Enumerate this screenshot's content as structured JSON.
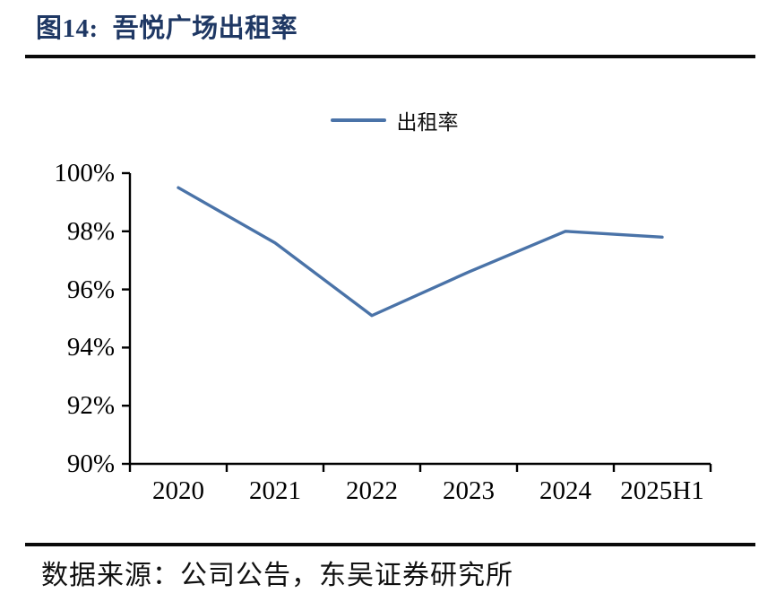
{
  "page": {
    "title_prefix": "图14:",
    "title": "吾悦广场出租率",
    "source_label": "数据来源：公司公告，东吴证券研究所"
  },
  "legend": {
    "series_label": "出租率"
  },
  "colors": {
    "title_text": "#1f3864",
    "series_line": "#4a73a8",
    "axis": "#000000",
    "rule": "#0a0a0a"
  },
  "chart_data": {
    "type": "line",
    "title": "吾悦广场出租率",
    "categories": [
      "2020",
      "2021",
      "2022",
      "2023",
      "2024",
      "2025H1"
    ],
    "series": [
      {
        "name": "出租率",
        "values": [
          99.5,
          97.6,
          95.1,
          96.6,
          98.0,
          97.8
        ]
      }
    ],
    "ylabel": "",
    "xlabel": "",
    "ylim": [
      90,
      100
    ],
    "ytick_step": 2,
    "ytick_labels_top_to_bottom": [
      "100%",
      "98%",
      "96%",
      "94%",
      "92%",
      "90%"
    ],
    "grid": false,
    "legend_position": "top-center"
  }
}
